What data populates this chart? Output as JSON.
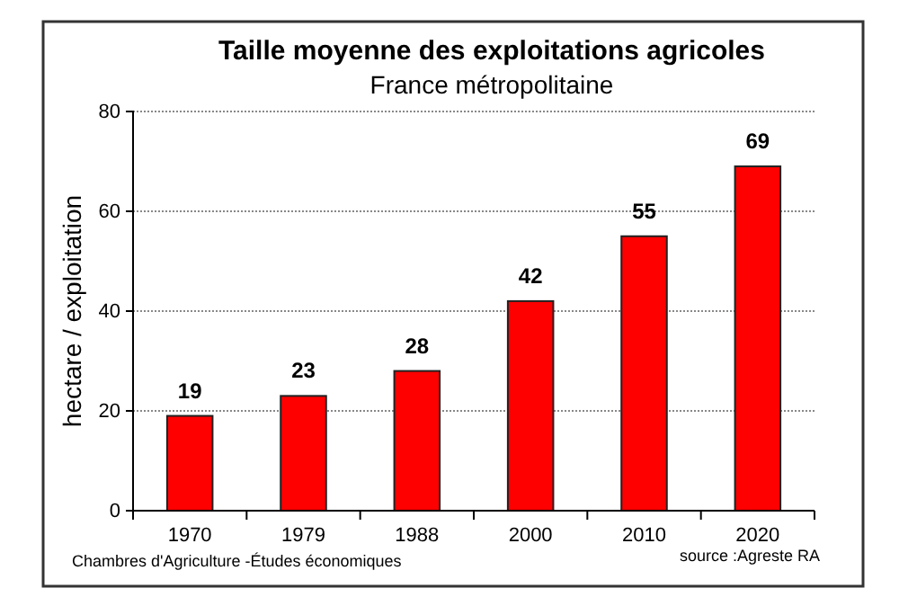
{
  "chart_data": {
    "type": "bar",
    "title": "Taille moyenne des exploitations agricoles",
    "subtitle": "France  métropolitaine",
    "ylabel": "hectare / exploitation",
    "categories": [
      "1970",
      "1979",
      "1988",
      "2000",
      "2010",
      "2020"
    ],
    "values": [
      19,
      23,
      28,
      42,
      55,
      69
    ],
    "color": "#ff0000",
    "ylim": [
      0,
      80
    ],
    "yticks": [
      0,
      20,
      40,
      60,
      80
    ],
    "grid": "y",
    "data_labels": true,
    "annotations": [
      "Chambres d'Agriculture -Études économiques",
      "source :Agreste RA"
    ]
  }
}
